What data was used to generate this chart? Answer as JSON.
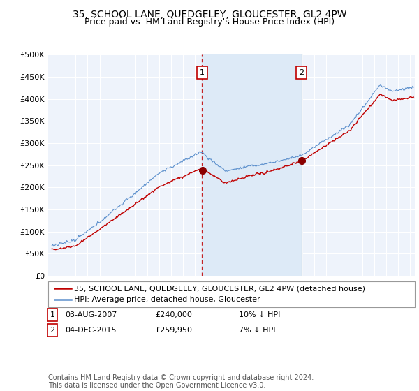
{
  "title": "35, SCHOOL LANE, QUEDGELEY, GLOUCESTER, GL2 4PW",
  "subtitle": "Price paid vs. HM Land Registry's House Price Index (HPI)",
  "ylim": [
    0,
    500000
  ],
  "yticks": [
    0,
    50000,
    100000,
    150000,
    200000,
    250000,
    300000,
    350000,
    400000,
    450000,
    500000
  ],
  "xlim_start": 1994.7,
  "xlim_end": 2025.4,
  "sale1_date": 2007.58,
  "sale1_price": 240000,
  "sale1_label": "1",
  "sale1_text": "03-AUG-2007",
  "sale1_hpi_diff": "10% ↓ HPI",
  "sale2_date": 2015.92,
  "sale2_price": 259950,
  "sale2_label": "2",
  "sale2_text": "04-DEC-2015",
  "sale2_hpi_diff": "7% ↓ HPI",
  "legend_label1": "35, SCHOOL LANE, QUEDGELEY, GLOUCESTER, GL2 4PW (detached house)",
  "legend_label2": "HPI: Average price, detached house, Gloucester",
  "footer": "Contains HM Land Registry data © Crown copyright and database right 2024.\nThis data is licensed under the Open Government Licence v3.0.",
  "hpi_color": "#5B8FCC",
  "price_color": "#C00000",
  "shade_color": "#DDEAF7",
  "background_color": "#EEF3FB",
  "grid_color": "#FFFFFF",
  "title_fontsize": 10,
  "subtitle_fontsize": 9,
  "tick_fontsize": 8,
  "legend_fontsize": 8,
  "footer_fontsize": 7
}
